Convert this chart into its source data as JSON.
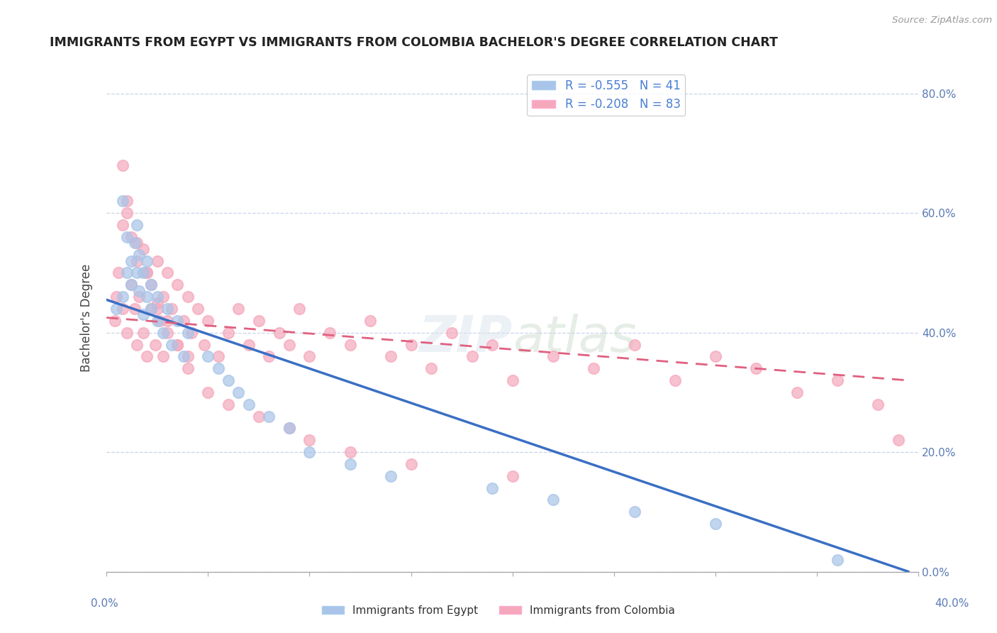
{
  "title": "IMMIGRANTS FROM EGYPT VS IMMIGRANTS FROM COLOMBIA BACHELOR'S DEGREE CORRELATION CHART",
  "source": "Source: ZipAtlas.com",
  "ylabel": "Bachelor's Degree",
  "egypt_color": "#a8c4e8",
  "colombia_color": "#f5a8bc",
  "egypt_line_color": "#3a6fc4",
  "colombia_line_color": "#e06080",
  "r_egypt": -0.555,
  "n_egypt": 41,
  "r_colombia": -0.208,
  "n_colombia": 83,
  "xlim": [
    0.0,
    0.4
  ],
  "ylim": [
    0.0,
    0.85
  ],
  "legend_egypt": "R = -0.555   N = 41",
  "legend_colombia": "R = -0.208   N = 83",
  "legend_label_egypt": "Immigrants from Egypt",
  "legend_label_colombia": "Immigrants from Colombia",
  "egypt_x": [
    0.005,
    0.008,
    0.008,
    0.01,
    0.01,
    0.012,
    0.012,
    0.014,
    0.015,
    0.015,
    0.016,
    0.016,
    0.018,
    0.018,
    0.02,
    0.02,
    0.022,
    0.022,
    0.025,
    0.025,
    0.028,
    0.03,
    0.032,
    0.035,
    0.038,
    0.04,
    0.05,
    0.055,
    0.06,
    0.065,
    0.07,
    0.08,
    0.09,
    0.1,
    0.12,
    0.14,
    0.19,
    0.22,
    0.26,
    0.3,
    0.36
  ],
  "egypt_y": [
    0.44,
    0.46,
    0.62,
    0.5,
    0.56,
    0.52,
    0.48,
    0.55,
    0.58,
    0.5,
    0.47,
    0.53,
    0.43,
    0.5,
    0.46,
    0.52,
    0.44,
    0.48,
    0.42,
    0.46,
    0.4,
    0.44,
    0.38,
    0.42,
    0.36,
    0.4,
    0.36,
    0.34,
    0.32,
    0.3,
    0.28,
    0.26,
    0.24,
    0.2,
    0.18,
    0.16,
    0.14,
    0.12,
    0.1,
    0.08,
    0.02
  ],
  "colombia_x": [
    0.004,
    0.006,
    0.008,
    0.008,
    0.01,
    0.01,
    0.012,
    0.012,
    0.014,
    0.015,
    0.015,
    0.016,
    0.018,
    0.018,
    0.02,
    0.02,
    0.022,
    0.022,
    0.024,
    0.025,
    0.025,
    0.026,
    0.028,
    0.028,
    0.03,
    0.03,
    0.032,
    0.035,
    0.035,
    0.038,
    0.04,
    0.04,
    0.042,
    0.045,
    0.048,
    0.05,
    0.055,
    0.06,
    0.065,
    0.07,
    0.075,
    0.08,
    0.085,
    0.09,
    0.095,
    0.1,
    0.11,
    0.12,
    0.13,
    0.14,
    0.15,
    0.16,
    0.17,
    0.18,
    0.19,
    0.2,
    0.22,
    0.24,
    0.26,
    0.28,
    0.3,
    0.32,
    0.34,
    0.36,
    0.38,
    0.005,
    0.008,
    0.01,
    0.015,
    0.02,
    0.025,
    0.03,
    0.035,
    0.04,
    0.05,
    0.06,
    0.075,
    0.09,
    0.1,
    0.12,
    0.15,
    0.2,
    0.39
  ],
  "colombia_y": [
    0.42,
    0.5,
    0.44,
    0.68,
    0.4,
    0.6,
    0.48,
    0.56,
    0.44,
    0.38,
    0.52,
    0.46,
    0.4,
    0.54,
    0.36,
    0.5,
    0.44,
    0.48,
    0.38,
    0.44,
    0.52,
    0.42,
    0.36,
    0.46,
    0.4,
    0.5,
    0.44,
    0.38,
    0.48,
    0.42,
    0.36,
    0.46,
    0.4,
    0.44,
    0.38,
    0.42,
    0.36,
    0.4,
    0.44,
    0.38,
    0.42,
    0.36,
    0.4,
    0.38,
    0.44,
    0.36,
    0.4,
    0.38,
    0.42,
    0.36,
    0.38,
    0.34,
    0.4,
    0.36,
    0.38,
    0.32,
    0.36,
    0.34,
    0.38,
    0.32,
    0.36,
    0.34,
    0.3,
    0.32,
    0.28,
    0.46,
    0.58,
    0.62,
    0.55,
    0.5,
    0.45,
    0.42,
    0.38,
    0.34,
    0.3,
    0.28,
    0.26,
    0.24,
    0.22,
    0.2,
    0.18,
    0.16,
    0.22
  ],
  "egypt_line_x": [
    0.0,
    0.395
  ],
  "egypt_line_y": [
    0.455,
    0.0
  ],
  "colombia_line_x": [
    0.0,
    0.395
  ],
  "colombia_line_y": [
    0.425,
    0.32
  ]
}
